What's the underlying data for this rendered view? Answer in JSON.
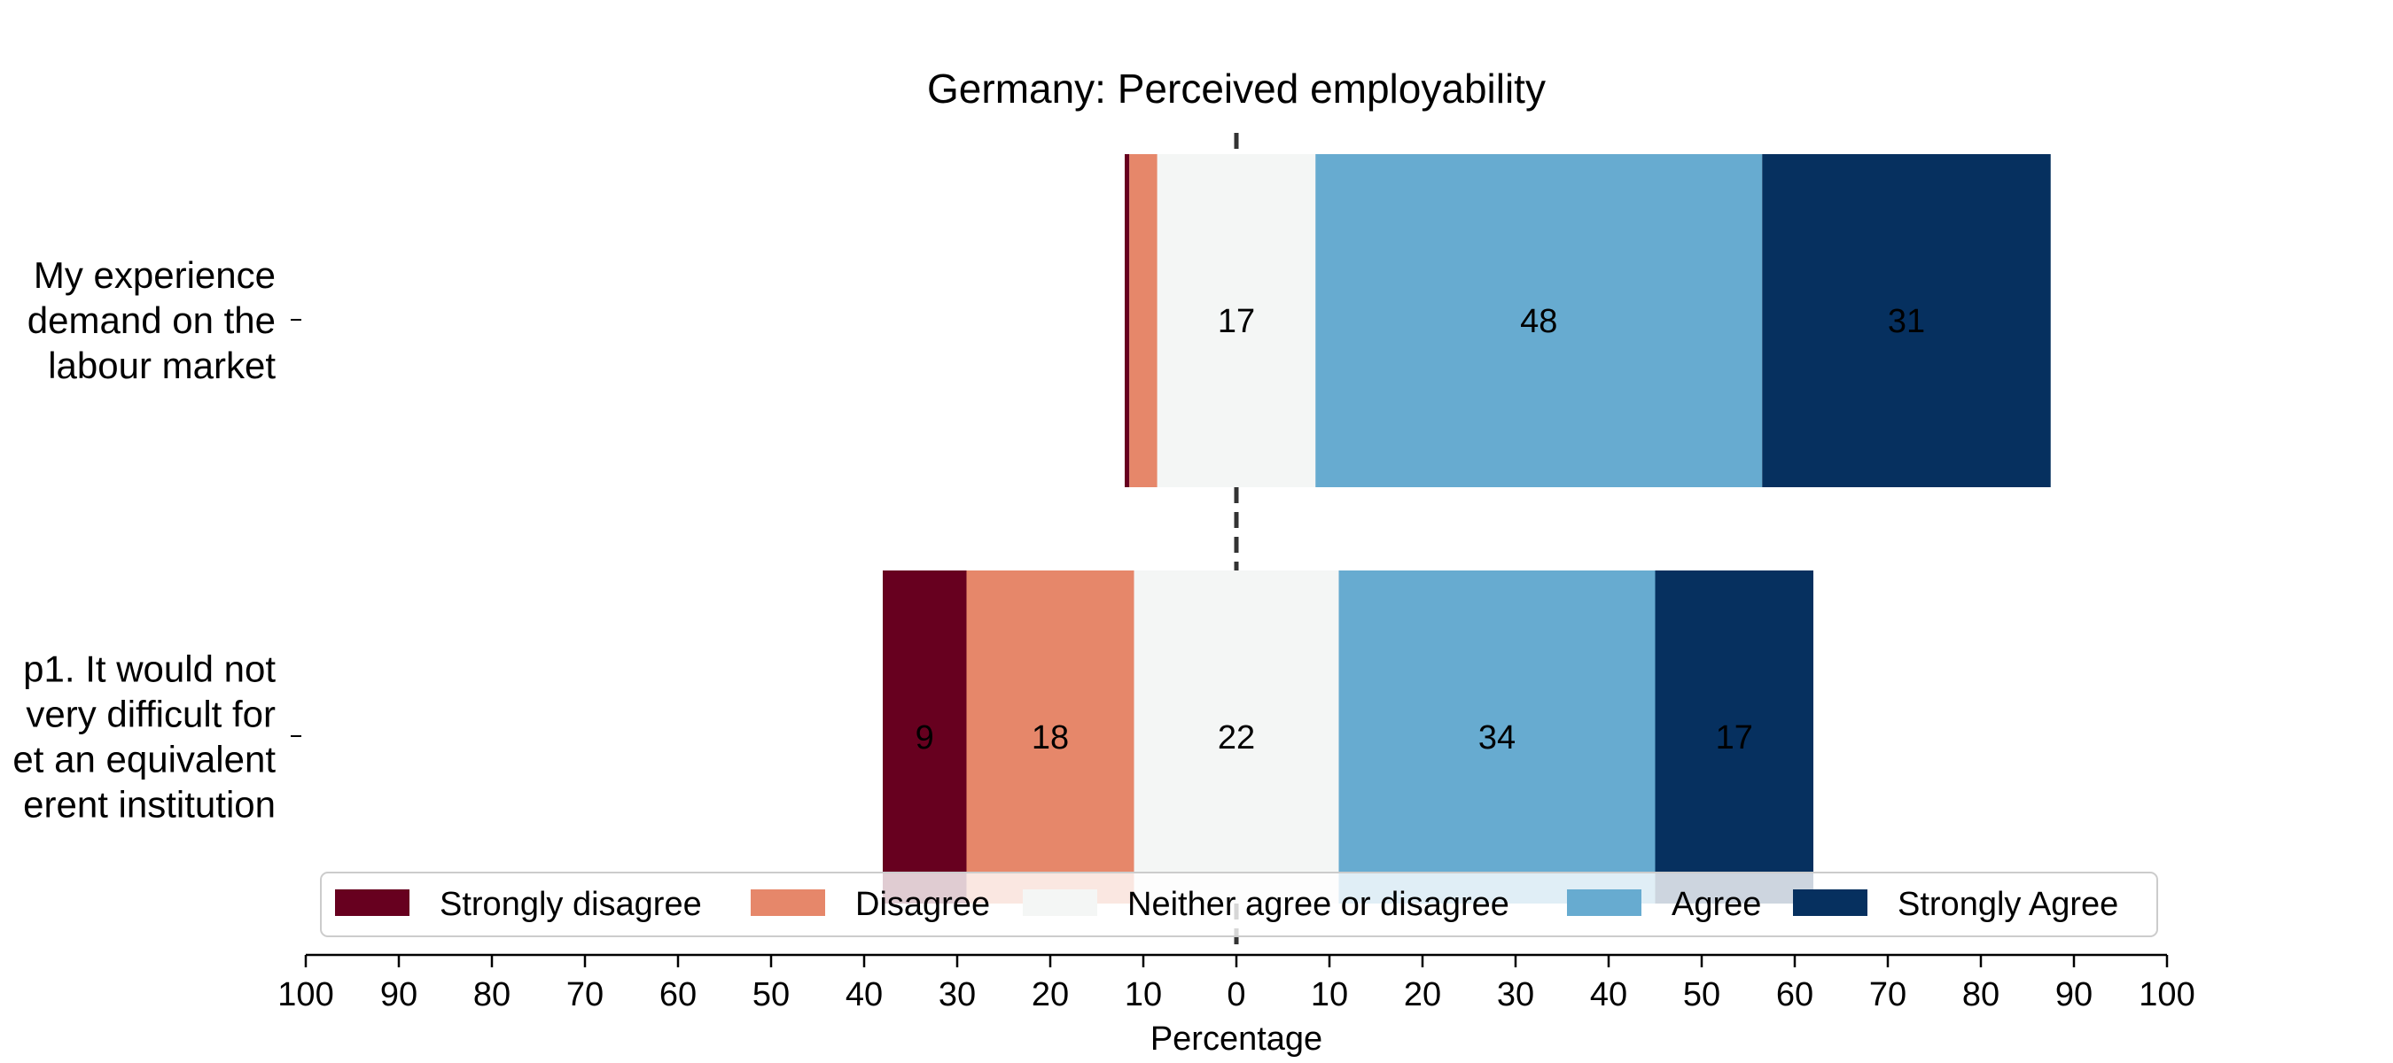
{
  "chart_data": {
    "type": "bar",
    "orientation": "horizontal-diverging",
    "title": "Germany: Perceived employability",
    "xlabel": "Percentage",
    "ylabel": "",
    "xlim": [
      -100,
      100
    ],
    "x_ticks": [
      -100,
      -90,
      -80,
      -70,
      -60,
      -50,
      -40,
      -30,
      -20,
      -10,
      0,
      10,
      20,
      30,
      40,
      50,
      60,
      70,
      80,
      90,
      100
    ],
    "x_tick_labels": [
      "100",
      "90",
      "80",
      "70",
      "60",
      "50",
      "40",
      "30",
      "20",
      "10",
      "0",
      "10",
      "20",
      "30",
      "40",
      "50",
      "60",
      "70",
      "80",
      "90",
      "100"
    ],
    "categories": [
      "My experience\ndemand on the\nlabour market",
      "p1. It would not\nvery difficult for\net an equivalent\nerent institution"
    ],
    "series": [
      {
        "name": "Strongly disagree",
        "color": "#67001f",
        "values": [
          0.5,
          9
        ],
        "labels": [
          "",
          "9"
        ]
      },
      {
        "name": "Disagree",
        "color": "#e6876a",
        "values": [
          3,
          18
        ],
        "labels": [
          "",
          "18"
        ]
      },
      {
        "name": "Neither agree or disagree",
        "color": "#f4f6f5",
        "values": [
          17,
          22
        ],
        "labels": [
          "17",
          "22"
        ]
      },
      {
        "name": "Agree",
        "color": "#67abd0",
        "values": [
          48,
          34
        ],
        "labels": [
          "48",
          "34"
        ]
      },
      {
        "name": "Strongly Agree",
        "color": "#06305f",
        "values": [
          31,
          17
        ],
        "labels": [
          "31",
          "17"
        ]
      }
    ],
    "neutral_split": "centered",
    "center_line": "dashed",
    "grid": false,
    "legend": {
      "placement": "bottom-center",
      "columns": 5
    }
  }
}
